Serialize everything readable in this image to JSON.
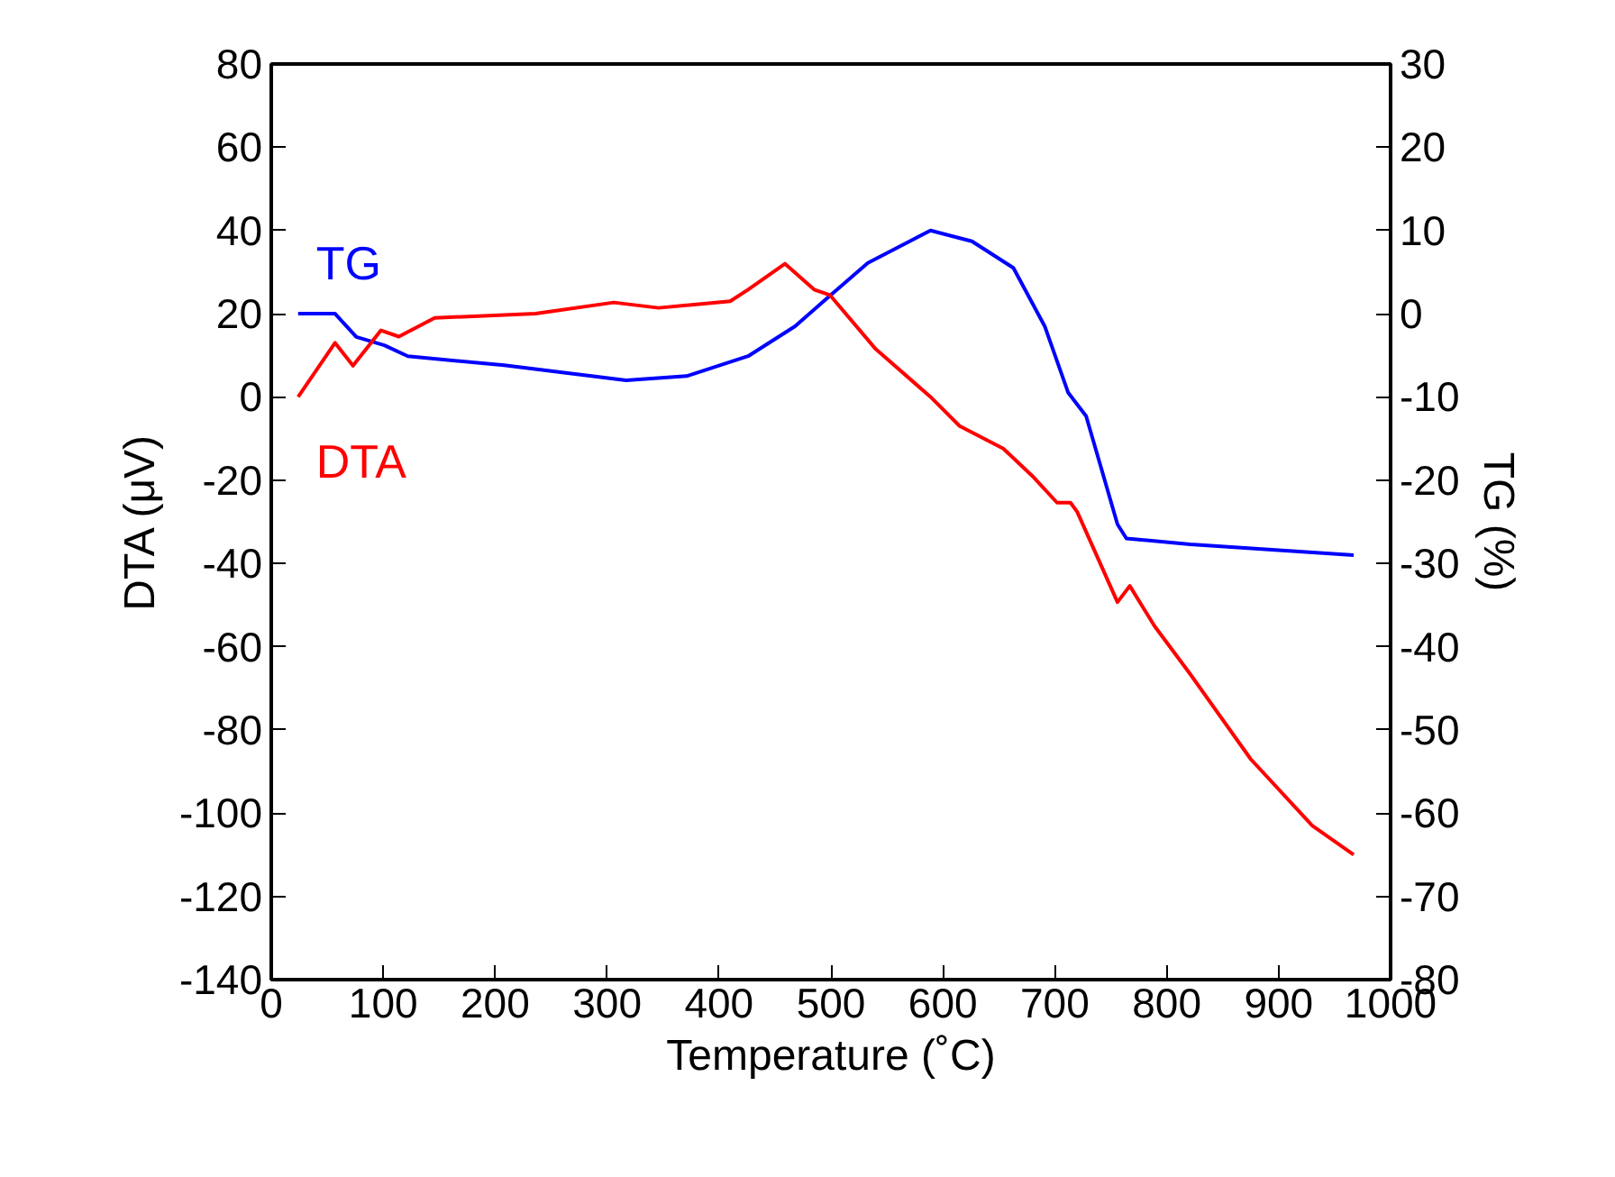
{
  "chart_data": {
    "type": "line",
    "xlabel": "Temperature (˚C)",
    "ylabel": "DTA (μV)",
    "y2label": "TG (%)",
    "xlim": [
      0,
      1000
    ],
    "xticks": [
      0,
      100,
      200,
      300,
      400,
      500,
      600,
      700,
      800,
      900,
      1000
    ],
    "ylim": [
      -140,
      80
    ],
    "yticks": [
      -140,
      -120,
      -100,
      -80,
      -60,
      -40,
      -20,
      0,
      20,
      40,
      60,
      80
    ],
    "y2lim": [
      -80,
      30
    ],
    "y2ticks": [
      -80,
      -70,
      -60,
      -50,
      -40,
      -30,
      -20,
      -10,
      0,
      10,
      20,
      30
    ],
    "grid": false,
    "marker": "none",
    "line_style": "solid",
    "series": [
      {
        "name": "TG",
        "color": "#0000ff",
        "axis": "y2",
        "x": [
          24,
          57,
          76,
          101,
          122,
          208,
          317,
          371,
          426,
          468,
          496,
          533,
          589,
          626,
          663,
          691,
          712,
          728,
          756,
          764,
          821,
          967
        ],
        "values": [
          0,
          0,
          -2.8,
          -3.8,
          -5.1,
          -6.2,
          -8,
          -7.5,
          -5.1,
          -1.5,
          1.8,
          6.1,
          10,
          8.7,
          5.5,
          -1.5,
          -9.5,
          -12.3,
          -25.3,
          -27,
          -27.7,
          -29
        ]
      },
      {
        "name": "DTA",
        "color": "#ff0000",
        "x": [
          24,
          57,
          73,
          98,
          114,
          146,
          236,
          306,
          346,
          410,
          426,
          459,
          485,
          499,
          540,
          589,
          615,
          654,
          680,
          702,
          714,
          720,
          756,
          767,
          789,
          821,
          875,
          930,
          967
        ],
        "values": [
          0,
          13,
          7.5,
          16,
          14.5,
          19,
          20,
          22.7,
          21.4,
          23,
          25.8,
          32,
          25.8,
          24.5,
          11.5,
          0,
          -7,
          -12.4,
          -19,
          -25.4,
          -25.4,
          -27.6,
          -49.3,
          -45.4,
          -55,
          -66.6,
          -87,
          -103,
          -110
        ]
      }
    ]
  }
}
